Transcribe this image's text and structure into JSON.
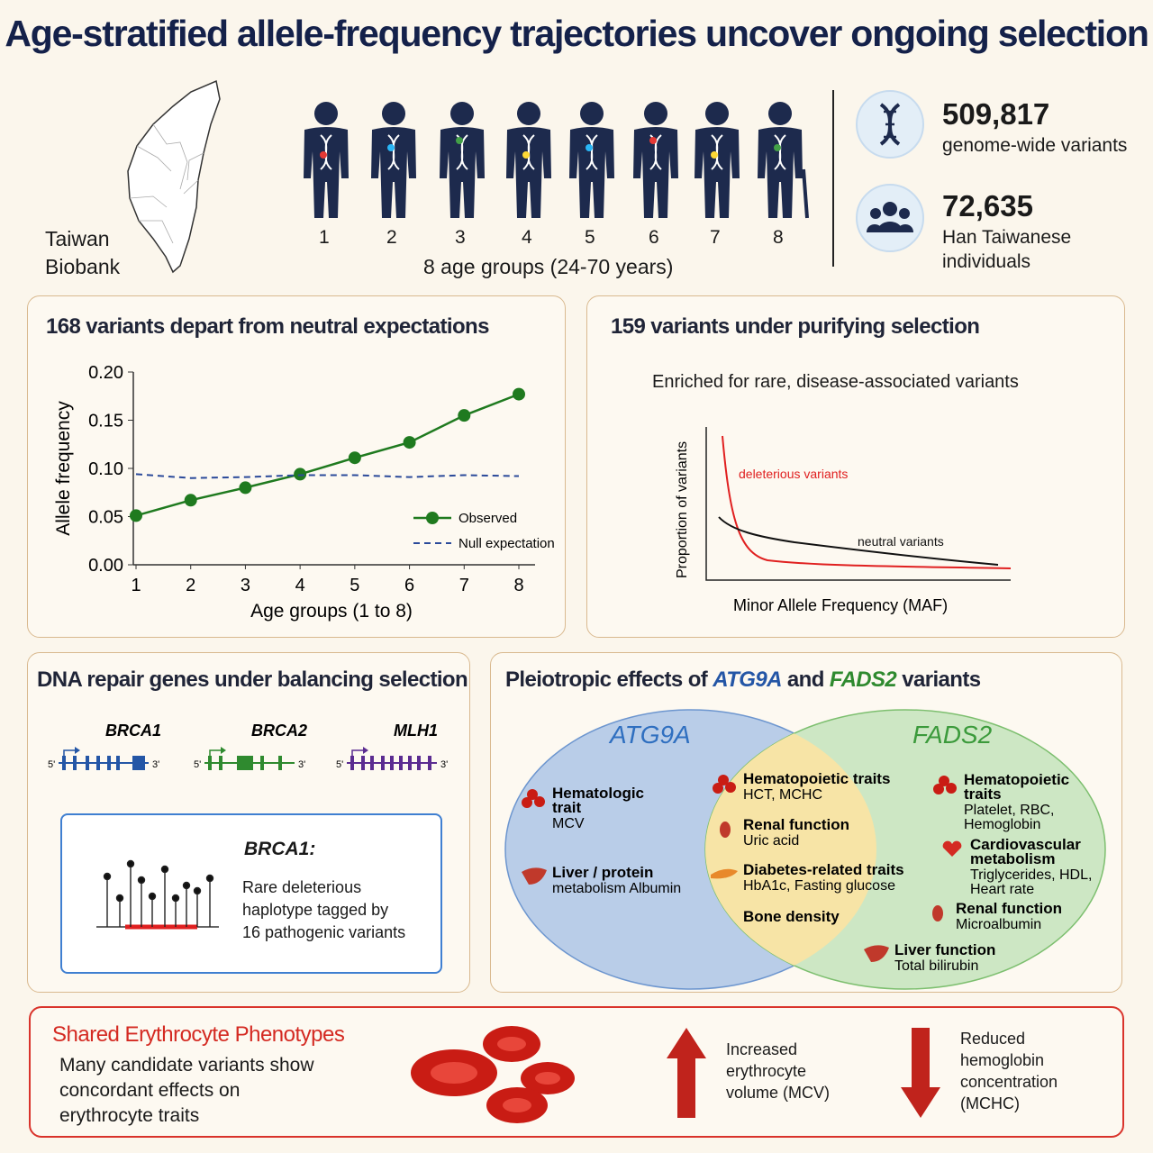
{
  "title": "Age-stratified allele-frequency trajectories uncover ongoing selection",
  "top": {
    "biobank_line1": "Taiwan",
    "biobank_line2": "Biobank",
    "age_groups": [
      "1",
      "2",
      "3",
      "4",
      "5",
      "6",
      "7",
      "8"
    ],
    "age_caption": "8 age groups (24-70 years)",
    "stat1_value": "509,817",
    "stat1_label": "genome-wide variants",
    "stat2_value": "72,635",
    "stat2_label_1": "Han Taiwanese",
    "stat2_label_2": "individuals",
    "icons": [
      "map-icon",
      "person-dna-icon",
      "dna-icon",
      "people-icon"
    ]
  },
  "panel_traj": {
    "title": "168 variants depart from neutral expectations",
    "chart_data": {
      "type": "line",
      "x": [
        1,
        2,
        3,
        4,
        5,
        6,
        7,
        8
      ],
      "series": [
        {
          "name": "Observed",
          "values": [
            0.051,
            0.067,
            0.08,
            0.094,
            0.111,
            0.127,
            0.155,
            0.177
          ],
          "color": "#1f7a1f"
        },
        {
          "name": "Null expectation",
          "values": [
            0.094,
            0.09,
            0.091,
            0.093,
            0.093,
            0.091,
            0.093,
            0.092
          ],
          "color": "#2b4a9a",
          "style": "dashed"
        }
      ],
      "xlabel": "Age groups (1 to 8)",
      "ylabel": "Allele frequency",
      "yticks": [
        "0.00",
        "0.05",
        "0.10",
        "0.15",
        "0.20"
      ],
      "xticks": [
        "1",
        "2",
        "3",
        "4",
        "5",
        "6",
        "7",
        "8"
      ],
      "ylim": [
        0,
        0.2
      ],
      "legend": "bottom-right"
    }
  },
  "panel_purify": {
    "title": "159 variants under purifying selection",
    "subtitle": "Enriched for rare, disease-associated variants",
    "ylabel": "Proportion of variants",
    "xlabel": "Minor Allele Frequency (MAF)",
    "curve_red_label": "deleterious variants",
    "curve_black_label": "neutral variants"
  },
  "panel_dna": {
    "title": "DNA repair genes under balancing selection",
    "genes": [
      "BRCA1",
      "BRCA2",
      "MLH1"
    ],
    "five_prime": "5'",
    "three_prime": "3'",
    "box_title": "BRCA1:",
    "box_line1": "Rare deleterious",
    "box_line2": "haplotype tagged by",
    "box_line3": "16 pathogenic variants"
  },
  "panel_venn": {
    "title_pre": "Pleiotropic effects of ",
    "gene_a": "ATG9A",
    "title_mid": " and ",
    "gene_b": "FADS2",
    "title_post": " variants",
    "left": [
      {
        "title": "Hematologic trait",
        "detail": "MCV"
      },
      {
        "title": "Liver / protein",
        "detail": "metabolism Albumin"
      }
    ],
    "center": [
      {
        "title": "Hematopoietic traits",
        "detail": "HCT, MCHC"
      },
      {
        "title": "Renal function",
        "detail": "Uric acid"
      },
      {
        "title": "Diabetes-related traits",
        "detail": "HbA1c, Fasting glucose"
      },
      {
        "title": "Bone density",
        "detail": ""
      }
    ],
    "right": [
      {
        "title": "Hematopoietic traits",
        "detail": "Platelet, RBC, Hemoglobin"
      },
      {
        "title": "Cardiovascular metabolism",
        "detail": "Triglycerides, HDL, Heart rate"
      },
      {
        "title": "Renal function",
        "detail": "Microalbumin"
      },
      {
        "title": "Liver function",
        "detail": "Total bilirubin"
      }
    ]
  },
  "panel_eryth": {
    "title": "Shared Erythrocyte Phenotypes",
    "text1": "Many candidate variants show",
    "text2": "concordant effects on",
    "text3": "erythrocyte traits",
    "up1": "Increased",
    "up2": "erythrocyte",
    "up3": "volume (MCV)",
    "down1": "Reduced",
    "down2": "hemoglobin",
    "down3": "concentration",
    "down4": "(MCHC)"
  },
  "colors": {
    "navy": "#14214a",
    "green": "#1f7a1f",
    "blue": "#2456a6",
    "red": "#d42a22",
    "venn_left": "#b9cde8",
    "venn_right": "#cde7c4",
    "venn_center": "#f7e4a6"
  }
}
